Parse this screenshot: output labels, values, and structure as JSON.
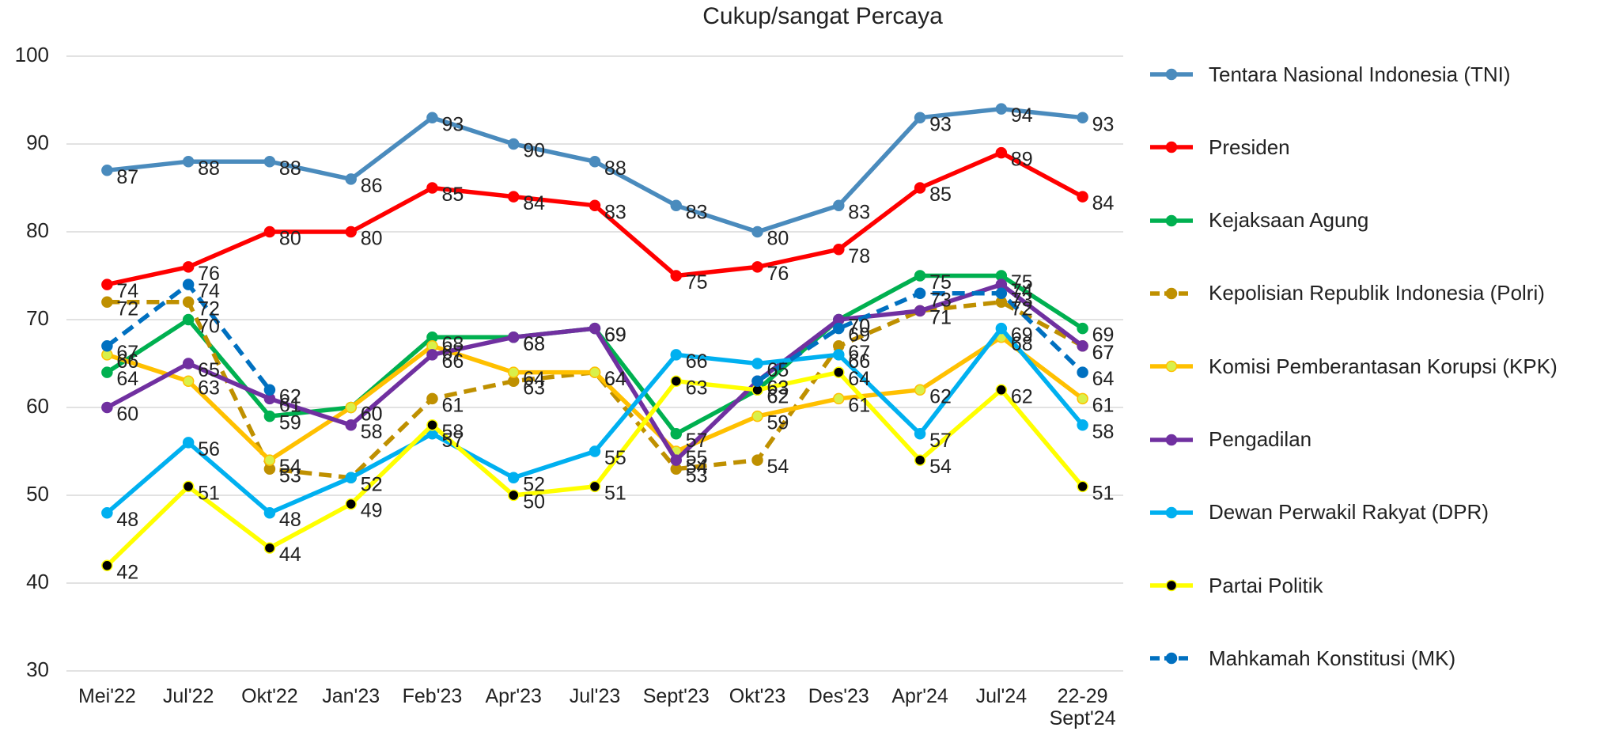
{
  "chart_data": {
    "type": "line",
    "title": "Cukup/sangat Percaya",
    "categories": [
      "Mei'22",
      "Jul'22",
      "Okt'22",
      "Jan'23",
      "Feb'23",
      "Apr'23",
      "Jul'23",
      "Sept'23",
      "Okt'23",
      "Des'23",
      "Apr'24",
      "Jul'24",
      "22-29 Sept'24"
    ],
    "ylim": [
      30,
      100
    ],
    "yticks": [
      30,
      40,
      50,
      60,
      70,
      80,
      90,
      100
    ],
    "grid": true,
    "series": [
      {
        "name": "Tentara Nasional Indonesia (TNI)",
        "color": "#4a8bbd",
        "values": [
          87,
          88,
          88,
          86,
          93,
          90,
          88,
          83,
          80,
          83,
          93,
          94,
          93
        ]
      },
      {
        "name": "Presiden",
        "color": "#ff0000",
        "values": [
          74,
          76,
          80,
          80,
          85,
          84,
          83,
          75,
          76,
          78,
          85,
          89,
          84
        ]
      },
      {
        "name": "Kejaksaan Agung",
        "color": "#00b050",
        "values": [
          64,
          70,
          59,
          60,
          68,
          68,
          69,
          57,
          62,
          70,
          75,
          75,
          69
        ]
      },
      {
        "name": "Kepolisian Republik Indonesia (Polri)",
        "color": "#bf9000",
        "style": "dashed",
        "values": [
          72,
          72,
          53,
          52,
          61,
          63,
          64,
          53,
          54,
          67,
          71,
          72,
          67
        ]
      },
      {
        "name": "Komisi Pemberantasan Korupsi (KPK)",
        "color": "#ffc000",
        "marker_color": "#d9f04a",
        "values": [
          66,
          63,
          54,
          60,
          67,
          64,
          64,
          55,
          59,
          61,
          62,
          68,
          61
        ]
      },
      {
        "name": "Pengadilan",
        "color": "#7030a0",
        "values": [
          60,
          65,
          61,
          58,
          66,
          68,
          69,
          54,
          63,
          70,
          71,
          74,
          67
        ]
      },
      {
        "name": "Dewan Perwakil Rakyat (DPR)",
        "color": "#00b0f0",
        "values": [
          48,
          56,
          48,
          52,
          57,
          52,
          55,
          66,
          65,
          66,
          57,
          69,
          58
        ]
      },
      {
        "name": "Partai Politik",
        "color": "#ffff00",
        "marker_color": "#000000",
        "values": [
          42,
          51,
          44,
          49,
          58,
          50,
          51,
          63,
          62,
          64,
          54,
          62,
          51
        ]
      },
      {
        "name": "Mahkamah Konstitusi (MK)",
        "color": "#0070c0",
        "style": "dashed",
        "values": [
          67,
          74,
          62,
          null,
          null,
          null,
          null,
          null,
          63,
          69,
          73,
          73,
          64
        ]
      }
    ]
  }
}
